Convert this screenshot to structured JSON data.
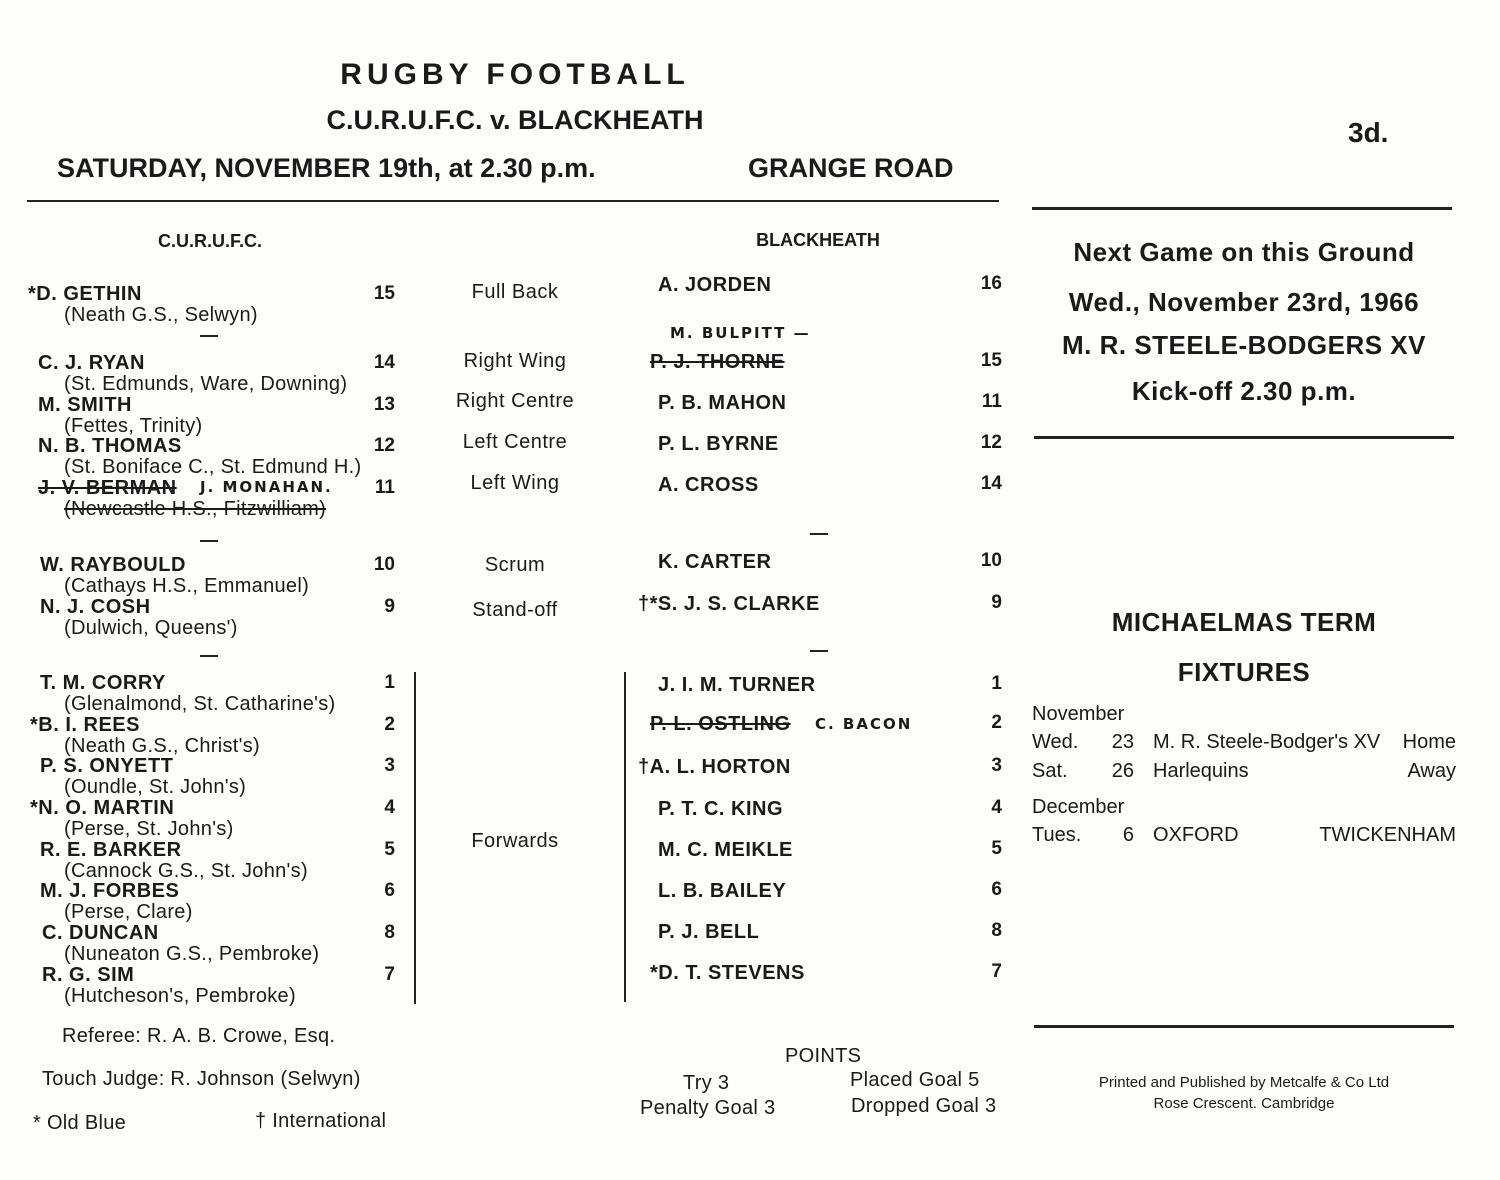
{
  "header": {
    "title": "RUGBY FOOTBALL",
    "match": "C.U.R.U.F.C. v. BLACKHEATH",
    "date_time": "SATURDAY, NOVEMBER 19th, at 2.30 p.m.",
    "venue": "GRANGE ROAD",
    "price": "3d."
  },
  "teams": {
    "home_label": "C.U.R.U.F.C.",
    "away_label": "BLACKHEATH"
  },
  "home_players": [
    {
      "name": "*D. GETHIN",
      "school": "(Neath G.S., Selwyn)",
      "number": "15"
    },
    {
      "name": "C. J. RYAN",
      "school": "(St. Edmunds, Ware, Downing)",
      "number": "14"
    },
    {
      "name": "M. SMITH",
      "school": "(Fettes, Trinity)",
      "number": "13"
    },
    {
      "name": "N. B. THOMAS",
      "school": "(St. Boniface C., St. Edmund H.)",
      "number": "12"
    },
    {
      "name": "J. V. BERMAN",
      "replacement": "J. MONAHAN.",
      "school": "(Newcastle H.S., Fitzwilliam)",
      "struck": true,
      "number": "11"
    },
    {
      "name": "W. RAYBOULD",
      "school": "(Cathays H.S., Emmanuel)",
      "number": "10"
    },
    {
      "name": "N. J. COSH",
      "school": "(Dulwich, Queens')",
      "number": "9"
    },
    {
      "name": "T. M. CORRY",
      "school": "(Glenalmond, St. Catharine's)",
      "number": "1"
    },
    {
      "name": "*B. I. REES",
      "school": "(Neath G.S., Christ's)",
      "number": "2"
    },
    {
      "name": "P. S. ONYETT",
      "school": "(Oundle, St. John's)",
      "number": "3"
    },
    {
      "name": "*N. O. MARTIN",
      "school": "(Perse, St. John's)",
      "number": "4"
    },
    {
      "name": "R. E. BARKER",
      "school": "(Cannock G.S., St. John's)",
      "number": "5"
    },
    {
      "name": "M. J. FORBES",
      "school": "(Perse, Clare)",
      "number": "6"
    },
    {
      "name": "C. DUNCAN",
      "school": "(Nuneaton G.S., Pembroke)",
      "number": "8"
    },
    {
      "name": "R. G. SIM",
      "school": "(Hutcheson's, Pembroke)",
      "number": "7"
    }
  ],
  "positions": [
    "Full Back",
    "Right Wing",
    "Right Centre",
    "Left Centre",
    "Left Wing",
    "Scrum",
    "Stand-off",
    "Forwards"
  ],
  "away_players": [
    {
      "name": "A. JORDEN",
      "number": "16"
    },
    {
      "name": "P. J. THORNE",
      "replacement": "M. BULPITT —",
      "struck": true,
      "number": "15"
    },
    {
      "name": "P. B. MAHON",
      "number": "11"
    },
    {
      "name": "P. L. BYRNE",
      "number": "12"
    },
    {
      "name": "A. CROSS",
      "number": "14"
    },
    {
      "name": "K. CARTER",
      "number": "10"
    },
    {
      "name": "†*S. J. S. CLARKE",
      "number": "9"
    },
    {
      "name": "J. I. M. TURNER",
      "number": "1"
    },
    {
      "name": "P. L. OSTLING",
      "replacement": "C. BACON",
      "struck": true,
      "number": "2"
    },
    {
      "name": "†A. L. HORTON",
      "number": "3"
    },
    {
      "name": "P. T. C. KING",
      "number": "4"
    },
    {
      "name": "M. C. MEIKLE",
      "number": "5"
    },
    {
      "name": "L. B. BAILEY",
      "number": "6"
    },
    {
      "name": "P. J. BELL",
      "number": "8"
    },
    {
      "name": "*D. T. STEVENS",
      "number": "7"
    }
  ],
  "officials": {
    "referee": "Referee: R. A. B. Crowe, Esq.",
    "touch_judge": "Touch Judge: R. Johnson (Selwyn)"
  },
  "legend": {
    "old_blue": "* Old Blue",
    "international": "† International"
  },
  "points": {
    "title": "POINTS",
    "try": "Try 3",
    "penalty_goal": "Penalty Goal 3",
    "placed_goal": "Placed Goal 5",
    "dropped_goal": "Dropped Goal 3"
  },
  "next_game": {
    "heading": "Next Game on this Ground",
    "date": "Wed., November 23rd, 1966",
    "opponent": "M. R. STEELE-BODGERS XV",
    "kickoff": "Kick-off 2.30 p.m."
  },
  "fixtures": {
    "title_line1": "MICHAELMAS TERM",
    "title_line2": "FIXTURES",
    "months": [
      {
        "month": "November",
        "games": [
          {
            "day": "Wed.",
            "date": "23",
            "opponent": "M. R. Steele-Bodger's XV",
            "venue": "Home"
          },
          {
            "day": "Sat.",
            "date": "26",
            "opponent": "Harlequins",
            "venue": "Away"
          }
        ]
      },
      {
        "month": "December",
        "games": [
          {
            "day": "Tues.",
            "date": "6",
            "opponent": "OXFORD",
            "venue": "TWICKENHAM"
          }
        ]
      }
    ]
  },
  "printer": {
    "line1": "Printed and Published by Metcalfe & Co Ltd",
    "line2": "Rose Crescent. Cambridge"
  }
}
